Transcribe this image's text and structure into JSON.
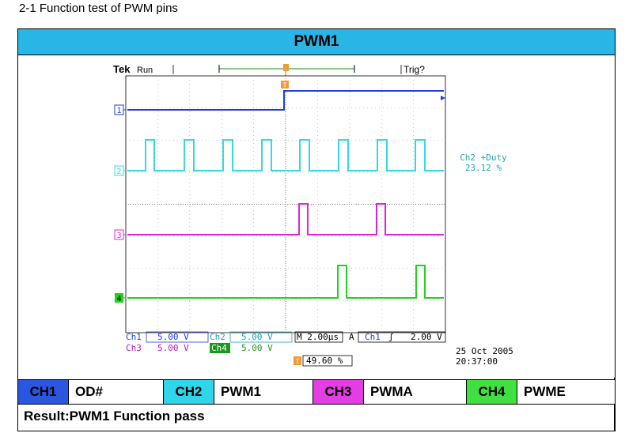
{
  "heading": "2-1 Function test of PWM pins",
  "title": "PWM1",
  "scope": {
    "brand": "Tek",
    "state": "Run",
    "trigger_status": "Trig?",
    "trigger_marker": "T",
    "measurement_label": "Ch2 +Duty",
    "measurement_value": "23.12 %",
    "channels": [
      {
        "id": "1",
        "color": "#1f3fd8"
      },
      {
        "id": "2",
        "color": "#35d8e6"
      },
      {
        "id": "3",
        "color": "#e022e0"
      },
      {
        "id": "4",
        "color": "#1ed21e"
      }
    ],
    "readouts": {
      "ch1_label": "Ch1",
      "ch1_value": "5.00 V",
      "ch2_label": "Ch2",
      "ch2_value": "5.00 V",
      "ch3_label": "Ch3",
      "ch3_value": "5.00 V",
      "ch4_label": "Ch4",
      "ch4_value": "5.00 V",
      "timebase": "M 2.00µs",
      "trigger_mode": "A",
      "trigger_source": "Ch1",
      "trigger_edge": "ʃ",
      "trigger_level": "2.00 V",
      "trigger_position": "49.60 %"
    },
    "date": "25 Oct  2005",
    "time": "20:37:00"
  },
  "channel_map": [
    {
      "label": "CH1",
      "signal": "OD#",
      "color": "#2a56e0"
    },
    {
      "label": "CH2",
      "signal": "PWM1",
      "color": "#2fd6ea"
    },
    {
      "label": "CH3",
      "signal": "PWMA",
      "color": "#e33de3"
    },
    {
      "label": "CH4",
      "signal": "PWME",
      "color": "#3fe03f"
    }
  ],
  "result": "Result:PWM1 Function pass"
}
